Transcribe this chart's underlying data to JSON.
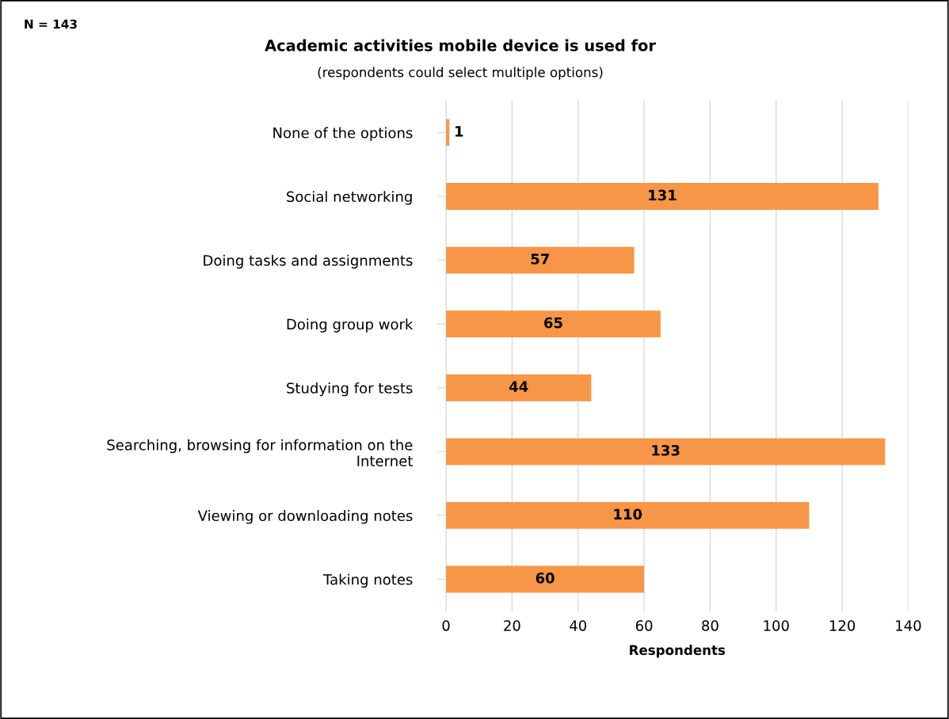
{
  "chart_data": {
    "type": "bar",
    "orientation": "horizontal",
    "title": "Academic activities mobile device is used for",
    "subtitle": "(respondents could select multiple options)",
    "xlabel": "Respondents",
    "categories": [
      "None of the options",
      "Social networking",
      "Doing tasks and assignments",
      "Doing group work",
      "Studying for tests",
      "Searching, browsing for information on the\nInternet",
      "Viewing or downloading notes",
      "Taking notes"
    ],
    "values": [
      1,
      131,
      57,
      65,
      44,
      133,
      110,
      60
    ],
    "color": "#f79646",
    "xlim": [
      0,
      140
    ],
    "xticks": [
      0,
      20,
      40,
      60,
      80,
      100,
      120,
      140
    ],
    "grid": "x",
    "data_labels": true,
    "annotations": [
      "N = 143"
    ]
  }
}
